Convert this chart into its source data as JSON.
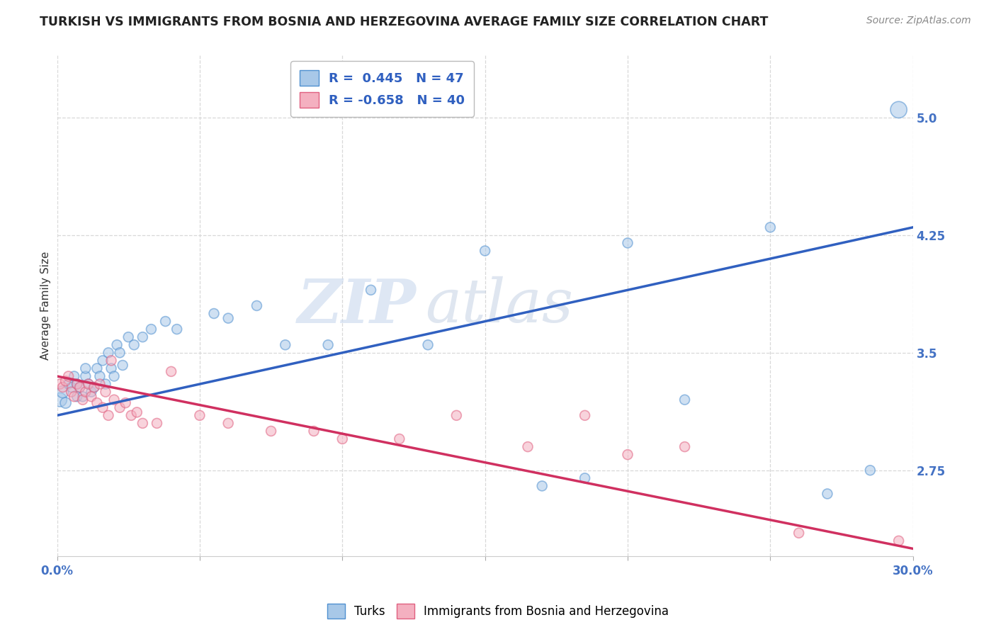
{
  "title": "TURKISH VS IMMIGRANTS FROM BOSNIA AND HERZEGOVINA AVERAGE FAMILY SIZE CORRELATION CHART",
  "source": "Source: ZipAtlas.com",
  "ylabel": "Average Family Size",
  "xlim": [
    0.0,
    0.3
  ],
  "ylim": [
    2.2,
    5.4
  ],
  "xtick_labels_bottom": [
    "0.0%",
    "30.0%"
  ],
  "xtick_vals_bottom": [
    0.0,
    0.3
  ],
  "xtick_vals_grid": [
    0.0,
    0.05,
    0.1,
    0.15,
    0.2,
    0.25,
    0.3
  ],
  "right_yticks": [
    2.75,
    3.5,
    4.25,
    5.0
  ],
  "ytick_color": "#4472c4",
  "blue_color": "#a8c8e8",
  "pink_color": "#f4b0c0",
  "blue_edge_color": "#5090d0",
  "pink_edge_color": "#e06080",
  "blue_line_color": "#3060c0",
  "pink_line_color": "#d03060",
  "legend_blue_label": "R =  0.445   N = 47",
  "legend_pink_label": "R = -0.658   N = 40",
  "legend_turks": "Turks",
  "legend_bosnia": "Immigrants from Bosnia and Herzegovina",
  "watermark": "ZIPatlas",
  "background_color": "#ffffff",
  "grid_color": "#d8d8d8",
  "title_color": "#222222",
  "blue_scatter_x": [
    0.001,
    0.002,
    0.003,
    0.004,
    0.005,
    0.006,
    0.007,
    0.007,
    0.008,
    0.009,
    0.01,
    0.01,
    0.011,
    0.012,
    0.013,
    0.014,
    0.015,
    0.016,
    0.017,
    0.018,
    0.019,
    0.02,
    0.021,
    0.022,
    0.023,
    0.025,
    0.027,
    0.03,
    0.033,
    0.038,
    0.042,
    0.055,
    0.06,
    0.07,
    0.08,
    0.095,
    0.11,
    0.13,
    0.15,
    0.17,
    0.185,
    0.2,
    0.22,
    0.25,
    0.27,
    0.285,
    0.295
  ],
  "blue_scatter_y": [
    3.2,
    3.25,
    3.18,
    3.3,
    3.28,
    3.35,
    3.22,
    3.3,
    3.28,
    3.22,
    3.35,
    3.4,
    3.3,
    3.25,
    3.28,
    3.4,
    3.35,
    3.45,
    3.3,
    3.5,
    3.4,
    3.35,
    3.55,
    3.5,
    3.42,
    3.6,
    3.55,
    3.6,
    3.65,
    3.7,
    3.65,
    3.75,
    3.72,
    3.8,
    3.55,
    3.55,
    3.9,
    3.55,
    4.15,
    2.65,
    2.7,
    4.2,
    3.2,
    4.3,
    2.6,
    2.75,
    5.05
  ],
  "blue_scatter_size": [
    200,
    150,
    120,
    100,
    100,
    100,
    100,
    100,
    100,
    100,
    100,
    100,
    100,
    100,
    100,
    100,
    100,
    100,
    100,
    100,
    100,
    100,
    100,
    100,
    100,
    100,
    100,
    100,
    100,
    100,
    100,
    100,
    100,
    100,
    100,
    100,
    100,
    100,
    100,
    100,
    100,
    100,
    100,
    100,
    100,
    100,
    280
  ],
  "pink_scatter_x": [
    0.001,
    0.002,
    0.003,
    0.004,
    0.005,
    0.006,
    0.007,
    0.008,
    0.009,
    0.01,
    0.011,
    0.012,
    0.013,
    0.014,
    0.015,
    0.016,
    0.017,
    0.018,
    0.019,
    0.02,
    0.022,
    0.024,
    0.026,
    0.028,
    0.03,
    0.035,
    0.04,
    0.05,
    0.06,
    0.075,
    0.09,
    0.1,
    0.12,
    0.14,
    0.165,
    0.185,
    0.2,
    0.22,
    0.26,
    0.295
  ],
  "pink_scatter_y": [
    3.3,
    3.28,
    3.32,
    3.35,
    3.25,
    3.22,
    3.3,
    3.28,
    3.2,
    3.25,
    3.3,
    3.22,
    3.28,
    3.18,
    3.3,
    3.15,
    3.25,
    3.1,
    3.45,
    3.2,
    3.15,
    3.18,
    3.1,
    3.12,
    3.05,
    3.05,
    3.38,
    3.1,
    3.05,
    3.0,
    3.0,
    2.95,
    2.95,
    3.1,
    2.9,
    3.1,
    2.85,
    2.9,
    2.35,
    2.3
  ],
  "pink_scatter_size": [
    100,
    100,
    100,
    100,
    100,
    100,
    100,
    100,
    100,
    100,
    100,
    100,
    100,
    100,
    100,
    100,
    100,
    100,
    100,
    100,
    100,
    100,
    100,
    100,
    100,
    100,
    100,
    100,
    100,
    100,
    100,
    100,
    100,
    100,
    100,
    100,
    100,
    100,
    100,
    100
  ],
  "blue_line_x": [
    0.0,
    0.3
  ],
  "blue_line_y": [
    3.1,
    4.3
  ],
  "pink_line_x": [
    0.0,
    0.3
  ],
  "pink_line_y": [
    3.35,
    2.25
  ]
}
